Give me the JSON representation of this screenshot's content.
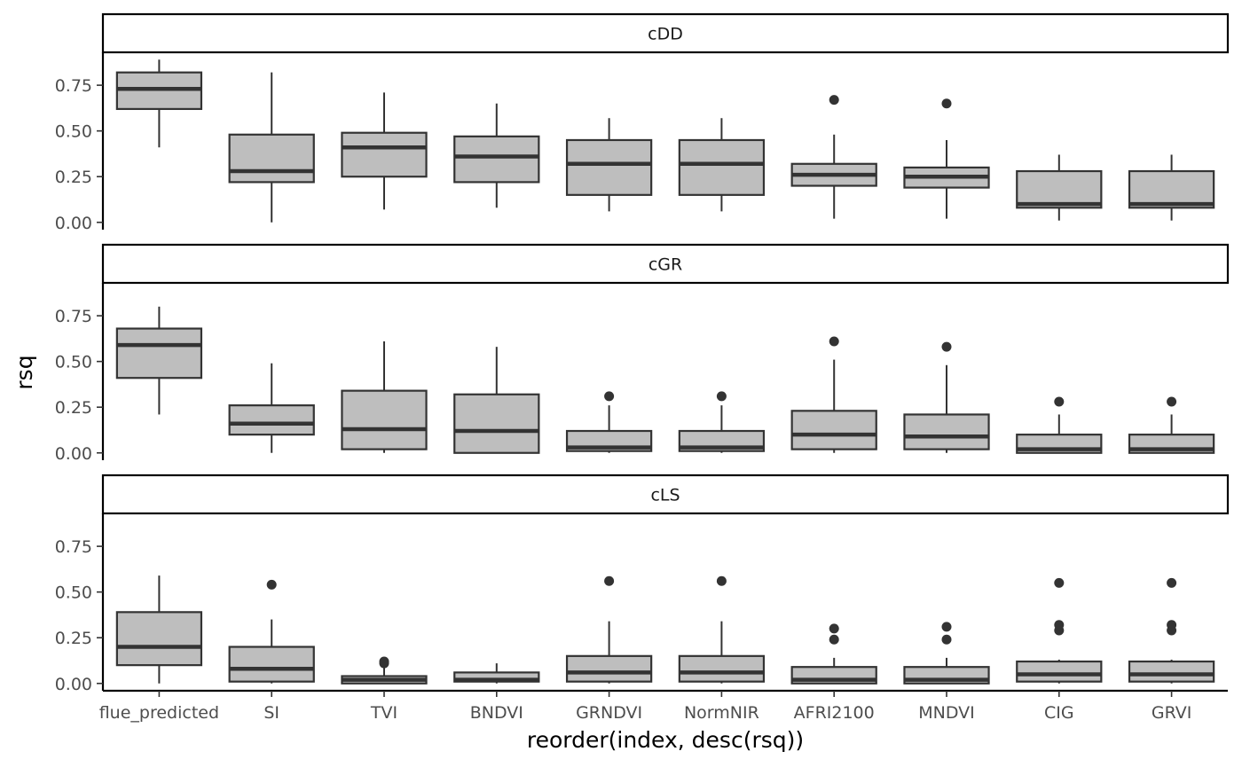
{
  "chart_data": {
    "type": "boxplot",
    "xlabel": "reorder(index, desc(rsq))",
    "ylabel": "rsq",
    "ylim": [
      -0.04,
      0.93
    ],
    "y_ticks": [
      0,
      0.25,
      0.5,
      0.75
    ],
    "y_tick_labels": [
      "0.00",
      "0.25",
      "0.50",
      "0.75"
    ],
    "categories": [
      "flue_predicted",
      "SI",
      "TVI",
      "BNDVI",
      "GRNDVI",
      "NormNIR",
      "AFRI2100",
      "MNDVI",
      "CIG",
      "GRVI"
    ],
    "box_fill": "#bebebe",
    "line_color": "#333333",
    "panels": [
      {
        "label": "cDD",
        "boxes": [
          {
            "wlo": 0.41,
            "q1": 0.62,
            "median": 0.73,
            "q3": 0.82,
            "whi": 0.89,
            "outliers": []
          },
          {
            "wlo": 0.0,
            "q1": 0.22,
            "median": 0.28,
            "q3": 0.48,
            "whi": 0.82,
            "outliers": []
          },
          {
            "wlo": 0.07,
            "q1": 0.25,
            "median": 0.41,
            "q3": 0.49,
            "whi": 0.71,
            "outliers": []
          },
          {
            "wlo": 0.08,
            "q1": 0.22,
            "median": 0.36,
            "q3": 0.47,
            "whi": 0.65,
            "outliers": []
          },
          {
            "wlo": 0.06,
            "q1": 0.15,
            "median": 0.32,
            "q3": 0.45,
            "whi": 0.57,
            "outliers": []
          },
          {
            "wlo": 0.06,
            "q1": 0.15,
            "median": 0.32,
            "q3": 0.45,
            "whi": 0.57,
            "outliers": []
          },
          {
            "wlo": 0.02,
            "q1": 0.2,
            "median": 0.26,
            "q3": 0.32,
            "whi": 0.48,
            "outliers": [
              0.67
            ]
          },
          {
            "wlo": 0.02,
            "q1": 0.19,
            "median": 0.25,
            "q3": 0.3,
            "whi": 0.45,
            "outliers": [
              0.65
            ]
          },
          {
            "wlo": 0.01,
            "q1": 0.08,
            "median": 0.1,
            "q3": 0.28,
            "whi": 0.37,
            "outliers": []
          },
          {
            "wlo": 0.01,
            "q1": 0.08,
            "median": 0.1,
            "q3": 0.28,
            "whi": 0.37,
            "outliers": []
          }
        ]
      },
      {
        "label": "cGR",
        "boxes": [
          {
            "wlo": 0.21,
            "q1": 0.41,
            "median": 0.59,
            "q3": 0.68,
            "whi": 0.8,
            "outliers": []
          },
          {
            "wlo": 0.0,
            "q1": 0.1,
            "median": 0.16,
            "q3": 0.26,
            "whi": 0.49,
            "outliers": []
          },
          {
            "wlo": 0.0,
            "q1": 0.02,
            "median": 0.13,
            "q3": 0.34,
            "whi": 0.61,
            "outliers": []
          },
          {
            "wlo": 0.0,
            "q1": 0.0,
            "median": 0.12,
            "q3": 0.32,
            "whi": 0.58,
            "outliers": []
          },
          {
            "wlo": 0.0,
            "q1": 0.01,
            "median": 0.03,
            "q3": 0.12,
            "whi": 0.26,
            "outliers": [
              0.31
            ]
          },
          {
            "wlo": 0.0,
            "q1": 0.01,
            "median": 0.03,
            "q3": 0.12,
            "whi": 0.26,
            "outliers": [
              0.31
            ]
          },
          {
            "wlo": 0.0,
            "q1": 0.02,
            "median": 0.1,
            "q3": 0.23,
            "whi": 0.51,
            "outliers": [
              0.61
            ]
          },
          {
            "wlo": 0.0,
            "q1": 0.02,
            "median": 0.09,
            "q3": 0.21,
            "whi": 0.48,
            "outliers": [
              0.58
            ]
          },
          {
            "wlo": 0.0,
            "q1": 0.0,
            "median": 0.02,
            "q3": 0.1,
            "whi": 0.21,
            "outliers": [
              0.28
            ]
          },
          {
            "wlo": 0.0,
            "q1": 0.0,
            "median": 0.02,
            "q3": 0.1,
            "whi": 0.21,
            "outliers": [
              0.28
            ]
          }
        ]
      },
      {
        "label": "cLS",
        "boxes": [
          {
            "wlo": 0.0,
            "q1": 0.1,
            "median": 0.2,
            "q3": 0.39,
            "whi": 0.59,
            "outliers": []
          },
          {
            "wlo": 0.0,
            "q1": 0.01,
            "median": 0.08,
            "q3": 0.2,
            "whi": 0.35,
            "outliers": [
              0.54
            ]
          },
          {
            "wlo": 0.0,
            "q1": 0.0,
            "median": 0.02,
            "q3": 0.04,
            "whi": 0.09,
            "outliers": [
              0.11,
              0.12
            ]
          },
          {
            "wlo": 0.0,
            "q1": 0.01,
            "median": 0.02,
            "q3": 0.06,
            "whi": 0.11,
            "outliers": []
          },
          {
            "wlo": 0.0,
            "q1": 0.01,
            "median": 0.06,
            "q3": 0.15,
            "whi": 0.34,
            "outliers": [
              0.56
            ]
          },
          {
            "wlo": 0.0,
            "q1": 0.01,
            "median": 0.06,
            "q3": 0.15,
            "whi": 0.34,
            "outliers": [
              0.56
            ]
          },
          {
            "wlo": 0.0,
            "q1": 0.0,
            "median": 0.02,
            "q3": 0.09,
            "whi": 0.14,
            "outliers": [
              0.24,
              0.3
            ]
          },
          {
            "wlo": 0.0,
            "q1": 0.0,
            "median": 0.02,
            "q3": 0.09,
            "whi": 0.14,
            "outliers": [
              0.24,
              0.31
            ]
          },
          {
            "wlo": 0.0,
            "q1": 0.01,
            "median": 0.05,
            "q3": 0.12,
            "whi": 0.13,
            "outliers": [
              0.29,
              0.32,
              0.55
            ]
          },
          {
            "wlo": 0.0,
            "q1": 0.01,
            "median": 0.05,
            "q3": 0.12,
            "whi": 0.13,
            "outliers": [
              0.29,
              0.32,
              0.55
            ]
          }
        ]
      }
    ]
  }
}
